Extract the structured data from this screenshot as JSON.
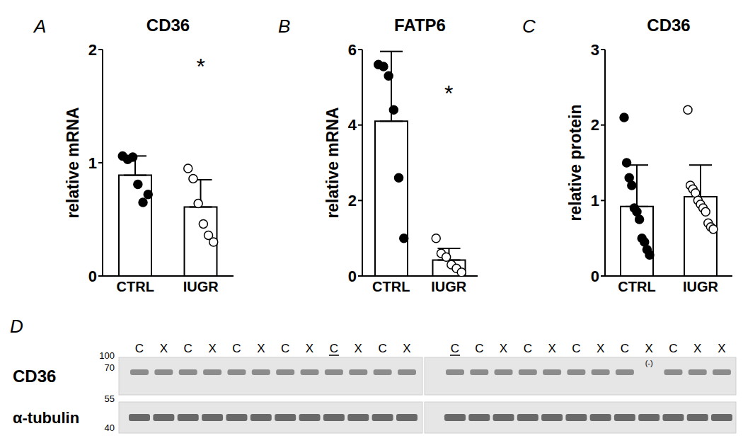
{
  "chart_data": [
    {
      "panel": "A",
      "type": "bar",
      "title": "CD36",
      "y_label": "relative mRNA",
      "categories": [
        "CTRL",
        "IUGR"
      ],
      "values": [
        0.89,
        0.61
      ],
      "error": [
        0.17,
        0.24
      ],
      "color": "#ffffff",
      "points": [
        {
          "category": "CTRL",
          "marker": "filled",
          "values": [
            1.06,
            1.03,
            1.05,
            0.81,
            0.65,
            0.72
          ]
        },
        {
          "category": "IUGR",
          "marker": "open",
          "values": [
            0.95,
            0.86,
            0.64,
            0.46,
            0.36,
            0.3
          ]
        }
      ],
      "ylim": [
        0,
        2
      ],
      "yticks": [
        0,
        1,
        2
      ],
      "annotations": [
        {
          "text": "*",
          "x": "IUGR",
          "y": 1.85
        }
      ]
    },
    {
      "panel": "B",
      "type": "bar",
      "title": "FATP6",
      "y_label": "relative mRNA",
      "categories": [
        "CTRL",
        "IUGR"
      ],
      "values": [
        4.1,
        0.42
      ],
      "error": [
        1.85,
        0.31
      ],
      "color": "#ffffff",
      "points": [
        {
          "category": "CTRL",
          "marker": "filled",
          "values": [
            5.6,
            5.55,
            5.3,
            4.4,
            2.6,
            1.0
          ]
        },
        {
          "category": "IUGR",
          "marker": "open",
          "values": [
            1.0,
            0.6,
            0.5,
            0.3,
            0.2,
            0.1
          ]
        }
      ],
      "ylim": [
        0,
        6
      ],
      "yticks": [
        0,
        2,
        4,
        6
      ],
      "annotations": [
        {
          "text": "*",
          "x": "IUGR",
          "y": 4.85
        }
      ]
    },
    {
      "panel": "C",
      "type": "bar",
      "title": "CD36",
      "y_label": "relative protein",
      "categories": [
        "CTRL",
        "IUGR"
      ],
      "values": [
        0.92,
        1.05
      ],
      "error": [
        0.55,
        0.42
      ],
      "color": "#ffffff",
      "points": [
        {
          "category": "CTRL",
          "marker": "filled",
          "values": [
            2.1,
            1.5,
            1.3,
            1.2,
            0.9,
            0.85,
            0.75,
            0.5,
            0.45,
            0.35,
            0.28
          ]
        },
        {
          "category": "IUGR",
          "marker": "open",
          "values": [
            2.2,
            1.2,
            1.15,
            1.1,
            1.0,
            0.95,
            0.9,
            0.85,
            0.7,
            0.65,
            0.62
          ]
        }
      ],
      "ylim": [
        0,
        3
      ],
      "yticks": [
        0,
        1,
        2,
        3
      ],
      "annotations": []
    }
  ],
  "blot": {
    "panel": "D",
    "rows": [
      {
        "label": "CD36",
        "markers": [
          100,
          70
        ]
      },
      {
        "label": "α-tubulin",
        "markers": [
          55,
          40
        ]
      }
    ],
    "lanes": [
      [
        {
          "label": "C"
        },
        {
          "label": "X"
        },
        {
          "label": "C"
        },
        {
          "label": "X"
        },
        {
          "label": "C"
        },
        {
          "label": "X"
        },
        {
          "label": "C"
        },
        {
          "label": "X"
        },
        {
          "label": "C",
          "underline": true
        },
        {
          "label": "X"
        },
        {
          "label": "C"
        },
        {
          "label": "X"
        }
      ],
      [
        {
          "label": "C",
          "underline": true
        },
        {
          "label": "C"
        },
        {
          "label": "X"
        },
        {
          "label": "C"
        },
        {
          "label": "X"
        },
        {
          "label": "C"
        },
        {
          "label": "X"
        },
        {
          "label": "C"
        },
        {
          "label": "X",
          "note": "(-)"
        },
        {
          "label": "C"
        },
        {
          "label": "X"
        },
        {
          "label": "X"
        }
      ]
    ]
  }
}
